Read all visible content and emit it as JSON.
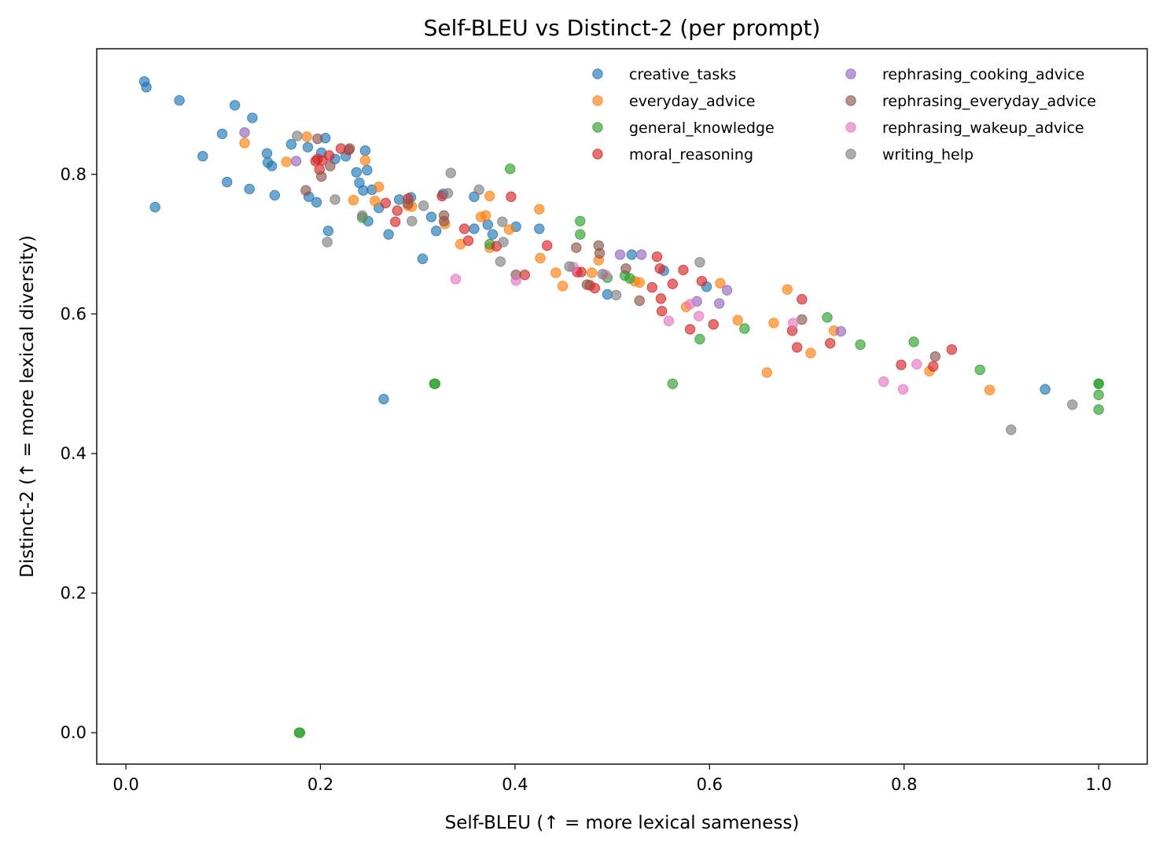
{
  "chart_data": {
    "type": "scatter",
    "title": "Self-BLEU vs Distinct-2 (per prompt)",
    "xlabel": "Self-BLEU (↑ = more lexical sameness)",
    "ylabel": "Distinct-2 (↑ = more lexical diversity)",
    "xlim": [
      -0.03,
      1.05
    ],
    "ylim": [
      -0.045,
      0.98
    ],
    "xticks": [
      0.0,
      0.2,
      0.4,
      0.6,
      0.8,
      1.0
    ],
    "xtick_labels": [
      "0.0",
      "0.2",
      "0.4",
      "0.6",
      "0.8",
      "1.0"
    ],
    "yticks": [
      0.0,
      0.2,
      0.4,
      0.6,
      0.8
    ],
    "ytick_labels": [
      "0.0",
      "0.2",
      "0.4",
      "0.6",
      "0.8"
    ],
    "legend_position": "top-right",
    "series": [
      {
        "name": "creative_tasks",
        "color": "#1f77b4",
        "points": [
          [
            0.019,
            0.933
          ],
          [
            0.021,
            0.925
          ],
          [
            0.055,
            0.906
          ],
          [
            0.112,
            0.899
          ],
          [
            0.13,
            0.881
          ],
          [
            0.099,
            0.858
          ],
          [
            0.079,
            0.826
          ],
          [
            0.03,
            0.753
          ],
          [
            0.104,
            0.789
          ],
          [
            0.127,
            0.779
          ],
          [
            0.145,
            0.83
          ],
          [
            0.146,
            0.817
          ],
          [
            0.15,
            0.812
          ],
          [
            0.153,
            0.77
          ],
          [
            0.17,
            0.843
          ],
          [
            0.187,
            0.839
          ],
          [
            0.188,
            0.768
          ],
          [
            0.196,
            0.76
          ],
          [
            0.201,
            0.831
          ],
          [
            0.205,
            0.852
          ],
          [
            0.215,
            0.822
          ],
          [
            0.226,
            0.826
          ],
          [
            0.237,
            0.803
          ],
          [
            0.24,
            0.788
          ],
          [
            0.244,
            0.777
          ],
          [
            0.246,
            0.834
          ],
          [
            0.248,
            0.806
          ],
          [
            0.249,
            0.733
          ],
          [
            0.253,
            0.778
          ],
          [
            0.208,
            0.719
          ],
          [
            0.26,
            0.752
          ],
          [
            0.27,
            0.714
          ],
          [
            0.281,
            0.764
          ],
          [
            0.293,
            0.767
          ],
          [
            0.305,
            0.679
          ],
          [
            0.314,
            0.739
          ],
          [
            0.319,
            0.719
          ],
          [
            0.326,
            0.772
          ],
          [
            0.358,
            0.768
          ],
          [
            0.358,
            0.722
          ],
          [
            0.372,
            0.728
          ],
          [
            0.377,
            0.714
          ],
          [
            0.401,
            0.725
          ],
          [
            0.425,
            0.722
          ],
          [
            0.265,
            0.478
          ],
          [
            0.495,
            0.628
          ],
          [
            0.52,
            0.685
          ],
          [
            0.553,
            0.662
          ],
          [
            0.597,
            0.639
          ],
          [
            0.945,
            0.492
          ]
        ]
      },
      {
        "name": "everyday_advice",
        "color": "#ff7f0e",
        "points": [
          [
            0.122,
            0.845
          ],
          [
            0.165,
            0.818
          ],
          [
            0.186,
            0.854
          ],
          [
            0.246,
            0.82
          ],
          [
            0.234,
            0.763
          ],
          [
            0.256,
            0.762
          ],
          [
            0.26,
            0.782
          ],
          [
            0.29,
            0.755
          ],
          [
            0.294,
            0.754
          ],
          [
            0.328,
            0.729
          ],
          [
            0.344,
            0.7
          ],
          [
            0.365,
            0.739
          ],
          [
            0.37,
            0.741
          ],
          [
            0.374,
            0.769
          ],
          [
            0.374,
            0.695
          ],
          [
            0.394,
            0.721
          ],
          [
            0.425,
            0.75
          ],
          [
            0.426,
            0.68
          ],
          [
            0.442,
            0.659
          ],
          [
            0.449,
            0.64
          ],
          [
            0.479,
            0.659
          ],
          [
            0.486,
            0.677
          ],
          [
            0.523,
            0.647
          ],
          [
            0.528,
            0.645
          ],
          [
            0.576,
            0.61
          ],
          [
            0.611,
            0.644
          ],
          [
            0.629,
            0.591
          ],
          [
            0.666,
            0.587
          ],
          [
            0.659,
            0.516
          ],
          [
            0.68,
            0.635
          ],
          [
            0.704,
            0.544
          ],
          [
            0.728,
            0.576
          ],
          [
            0.826,
            0.518
          ],
          [
            0.888,
            0.491
          ]
        ]
      },
      {
        "name": "general_knowledge",
        "color": "#2ca02c",
        "points": [
          [
            0.243,
            0.738
          ],
          [
            0.317,
            0.5
          ],
          [
            0.318,
            0.5
          ],
          [
            0.395,
            0.808
          ],
          [
            0.374,
            0.7
          ],
          [
            0.467,
            0.733
          ],
          [
            0.467,
            0.714
          ],
          [
            0.495,
            0.652
          ],
          [
            0.513,
            0.655
          ],
          [
            0.518,
            0.651
          ],
          [
            0.562,
            0.5
          ],
          [
            0.59,
            0.564
          ],
          [
            0.636,
            0.579
          ],
          [
            0.721,
            0.595
          ],
          [
            0.755,
            0.556
          ],
          [
            0.81,
            0.56
          ],
          [
            0.878,
            0.52
          ],
          [
            1.0,
            0.5
          ],
          [
            1.0,
            0.5
          ],
          [
            1.0,
            0.484
          ],
          [
            1.0,
            0.463
          ],
          [
            0.178,
            0.0
          ],
          [
            0.179,
            0.0
          ]
        ]
      },
      {
        "name": "moral_reasoning",
        "color": "#d62728",
        "points": [
          [
            0.195,
            0.819
          ],
          [
            0.197,
            0.822
          ],
          [
            0.199,
            0.807
          ],
          [
            0.202,
            0.82
          ],
          [
            0.209,
            0.827
          ],
          [
            0.221,
            0.837
          ],
          [
            0.229,
            0.835
          ],
          [
            0.267,
            0.759
          ],
          [
            0.277,
            0.732
          ],
          [
            0.279,
            0.748
          ],
          [
            0.29,
            0.765
          ],
          [
            0.325,
            0.769
          ],
          [
            0.348,
            0.722
          ],
          [
            0.352,
            0.705
          ],
          [
            0.381,
            0.697
          ],
          [
            0.396,
            0.768
          ],
          [
            0.41,
            0.656
          ],
          [
            0.433,
            0.698
          ],
          [
            0.464,
            0.66
          ],
          [
            0.468,
            0.66
          ],
          [
            0.477,
            0.641
          ],
          [
            0.482,
            0.637
          ],
          [
            0.541,
            0.638
          ],
          [
            0.546,
            0.682
          ],
          [
            0.549,
            0.665
          ],
          [
            0.55,
            0.622
          ],
          [
            0.551,
            0.604
          ],
          [
            0.562,
            0.643
          ],
          [
            0.573,
            0.663
          ],
          [
            0.58,
            0.578
          ],
          [
            0.592,
            0.647
          ],
          [
            0.604,
            0.585
          ],
          [
            0.685,
            0.576
          ],
          [
            0.69,
            0.552
          ],
          [
            0.695,
            0.621
          ],
          [
            0.724,
            0.558
          ],
          [
            0.797,
            0.527
          ],
          [
            0.83,
            0.525
          ],
          [
            0.849,
            0.549
          ]
        ]
      },
      {
        "name": "rephrasing_cooking_advice",
        "color": "#9467bd",
        "points": [
          [
            0.122,
            0.86
          ],
          [
            0.175,
            0.819
          ],
          [
            0.508,
            0.685
          ],
          [
            0.53,
            0.685
          ],
          [
            0.587,
            0.618
          ],
          [
            0.61,
            0.615
          ],
          [
            0.618,
            0.634
          ],
          [
            0.735,
            0.575
          ]
        ]
      },
      {
        "name": "rephrasing_everyday_advice",
        "color": "#8c564b",
        "points": [
          [
            0.185,
            0.777
          ],
          [
            0.197,
            0.851
          ],
          [
            0.201,
            0.797
          ],
          [
            0.21,
            0.812
          ],
          [
            0.23,
            0.837
          ],
          [
            0.29,
            0.758
          ],
          [
            0.327,
            0.741
          ],
          [
            0.327,
            0.733
          ],
          [
            0.401,
            0.656
          ],
          [
            0.463,
            0.695
          ],
          [
            0.474,
            0.642
          ],
          [
            0.486,
            0.698
          ],
          [
            0.487,
            0.687
          ],
          [
            0.514,
            0.665
          ],
          [
            0.528,
            0.619
          ],
          [
            0.695,
            0.592
          ],
          [
            0.832,
            0.539
          ]
        ]
      },
      {
        "name": "rephrasing_wakeup_advice",
        "color": "#e377c2",
        "points": [
          [
            0.339,
            0.65
          ],
          [
            0.401,
            0.648
          ],
          [
            0.46,
            0.667
          ],
          [
            0.493,
            0.656
          ],
          [
            0.558,
            0.59
          ],
          [
            0.58,
            0.614
          ],
          [
            0.589,
            0.597
          ],
          [
            0.686,
            0.587
          ],
          [
            0.779,
            0.503
          ],
          [
            0.799,
            0.492
          ],
          [
            0.813,
            0.528
          ]
        ]
      },
      {
        "name": "writing_help",
        "color": "#7f7f7f",
        "points": [
          [
            0.176,
            0.855
          ],
          [
            0.215,
            0.764
          ],
          [
            0.207,
            0.703
          ],
          [
            0.243,
            0.741
          ],
          [
            0.294,
            0.733
          ],
          [
            0.306,
            0.755
          ],
          [
            0.331,
            0.773
          ],
          [
            0.334,
            0.802
          ],
          [
            0.363,
            0.778
          ],
          [
            0.387,
            0.732
          ],
          [
            0.385,
            0.675
          ],
          [
            0.388,
            0.703
          ],
          [
            0.456,
            0.668
          ],
          [
            0.49,
            0.657
          ],
          [
            0.504,
            0.627
          ],
          [
            0.59,
            0.674
          ],
          [
            0.91,
            0.434
          ],
          [
            0.973,
            0.47
          ]
        ]
      }
    ]
  }
}
